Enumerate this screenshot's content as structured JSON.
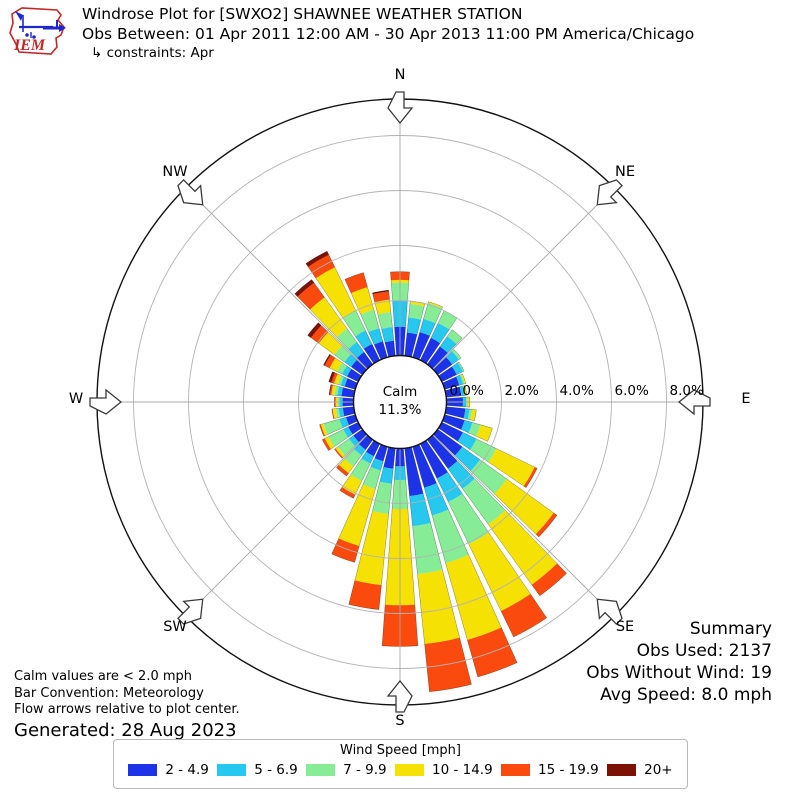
{
  "header": {
    "title": "Windrose Plot for [SWXO2] SHAWNEE WEATHER STATION",
    "obs_line": "Obs Between: 01 Apr 2011 12:00 AM - 30 Apr 2013 11:00 PM America/Chicago",
    "constraints_line": "↳ constraints: Apr",
    "logo_text": "IEM"
  },
  "plot": {
    "calm": {
      "label": "Calm",
      "value": "11.3%"
    },
    "ring_labels": [
      "0.0%",
      "2.0%",
      "4.0%",
      "6.0%",
      "8.0%"
    ],
    "compass": {
      "n": "N",
      "ne": "NE",
      "e": "E",
      "se": "SE",
      "s": "S",
      "sw": "SW",
      "w": "W",
      "nw": "NW"
    }
  },
  "summary": {
    "title": "Summary",
    "obs_used": "Obs Used: 2137",
    "obs_without_wind": "Obs Without Wind: 19",
    "avg_speed": "Avg Speed: 8.0 mph"
  },
  "notes": {
    "line1": "Calm values are < 2.0 mph",
    "line2": "Bar Convention: Meteorology",
    "line3": "Flow arrows relative to plot center.",
    "generated": "Generated: 28 Aug 2023"
  },
  "legend": {
    "title": "Wind Speed [mph]",
    "items": [
      {
        "label": "2 - 4.9",
        "color": "#1c33e8"
      },
      {
        "label": "5 - 6.9",
        "color": "#26c8f0"
      },
      {
        "label": "7 - 9.9",
        "color": "#86ec95"
      },
      {
        "label": "10 - 14.9",
        "color": "#f5e104"
      },
      {
        "label": "15 - 19.9",
        "color": "#fa4a0e"
      },
      {
        "label": "20+",
        "color": "#7c1204"
      }
    ]
  },
  "chart_data": {
    "type": "windrose",
    "units": "percent frequency of wind direction by speed bin",
    "title": "Windrose Plot for [SWXO2] SHAWNEE WEATHER STATION",
    "direction_convention": "meteorology (direction wind blows from), flow arrows point to plot center",
    "calm_percent": 11.3,
    "calm_threshold": "< 2.0 mph",
    "ring_ticks_percent": [
      0,
      2,
      4,
      6,
      8
    ],
    "speed_bins_mph": [
      "2 - 4.9",
      "5 - 6.9",
      "7 - 9.9",
      "10 - 14.9",
      "15 - 19.9",
      "20+"
    ],
    "bin_colors": [
      "#1c33e8",
      "#26c8f0",
      "#86ec95",
      "#f5e104",
      "#fa4a0e",
      "#7c1204"
    ],
    "directions_deg": [
      0,
      10,
      20,
      30,
      40,
      50,
      60,
      70,
      80,
      90,
      100,
      110,
      120,
      130,
      140,
      150,
      160,
      170,
      180,
      190,
      200,
      210,
      220,
      230,
      240,
      250,
      260,
      270,
      280,
      290,
      300,
      310,
      320,
      330,
      340,
      350
    ],
    "frequencies_percent": [
      [
        1.05,
        0.95,
        0.65,
        0.1,
        0.3,
        0.0
      ],
      [
        0.85,
        0.55,
        0.5,
        0.1,
        0.0,
        0.0
      ],
      [
        0.95,
        0.5,
        0.6,
        0.05,
        0.0,
        0.0
      ],
      [
        0.9,
        0.6,
        0.5,
        0.0,
        0.0,
        0.0
      ],
      [
        0.8,
        0.45,
        0.3,
        0.0,
        0.0,
        0.0
      ],
      [
        0.65,
        0.3,
        0.1,
        0.0,
        0.0,
        0.0
      ],
      [
        0.6,
        0.25,
        0.05,
        0.0,
        0.0,
        0.0
      ],
      [
        0.55,
        0.15,
        0.05,
        0.05,
        0.0,
        0.0
      ],
      [
        0.55,
        0.12,
        0.03,
        0.05,
        0.0,
        0.0
      ],
      [
        0.6,
        0.12,
        0.05,
        0.08,
        0.0,
        0.0
      ],
      [
        0.7,
        0.15,
        0.1,
        0.15,
        0.0,
        0.0
      ],
      [
        0.75,
        0.3,
        0.3,
        0.45,
        0.0,
        0.0
      ],
      [
        0.85,
        0.55,
        0.8,
        1.55,
        0.1,
        0.0
      ],
      [
        1.1,
        0.8,
        1.2,
        2.1,
        0.15,
        0.0
      ],
      [
        1.3,
        0.9,
        1.6,
        2.7,
        0.5,
        0.0
      ],
      [
        1.4,
        0.95,
        1.7,
        2.7,
        1.05,
        0.0
      ],
      [
        1.55,
        1.05,
        1.8,
        2.9,
        1.4,
        0.0
      ],
      [
        1.75,
        1.1,
        1.75,
        2.55,
        1.75,
        0.0
      ],
      [
        0.65,
        0.5,
        1.05,
        3.5,
        1.5,
        0.0
      ],
      [
        0.75,
        0.55,
        1.1,
        2.6,
        0.9,
        0.0
      ],
      [
        0.55,
        0.35,
        0.7,
        2.15,
        0.62,
        0.0
      ],
      [
        0.5,
        0.3,
        0.7,
        0.55,
        0.15,
        0.0
      ],
      [
        0.45,
        0.25,
        0.5,
        0.3,
        0.13,
        0.0
      ],
      [
        0.4,
        0.2,
        0.5,
        0.1,
        0.05,
        0.0
      ],
      [
        0.4,
        0.2,
        0.6,
        0.15,
        0.1,
        0.0
      ],
      [
        0.35,
        0.25,
        0.6,
        0.1,
        0.05,
        0.0
      ],
      [
        0.4,
        0.15,
        0.1,
        0.12,
        0.03,
        0.0
      ],
      [
        0.4,
        0.12,
        0.05,
        0.08,
        0.05,
        0.0
      ],
      [
        0.45,
        0.15,
        0.1,
        0.12,
        0.05,
        0.03
      ],
      [
        0.4,
        0.15,
        0.1,
        0.15,
        0.1,
        0.1
      ],
      [
        0.45,
        0.2,
        0.2,
        0.3,
        0.2,
        0.05
      ],
      [
        0.5,
        0.3,
        0.45,
        0.7,
        0.35,
        0.15
      ],
      [
        0.55,
        0.45,
        0.6,
        1.4,
        0.65,
        0.15
      ],
      [
        0.65,
        0.55,
        0.8,
        1.75,
        0.5,
        0.15
      ],
      [
        0.6,
        0.5,
        0.7,
        0.85,
        0.55,
        0.0
      ],
      [
        0.55,
        0.5,
        0.55,
        0.45,
        0.3,
        0.05
      ]
    ]
  }
}
